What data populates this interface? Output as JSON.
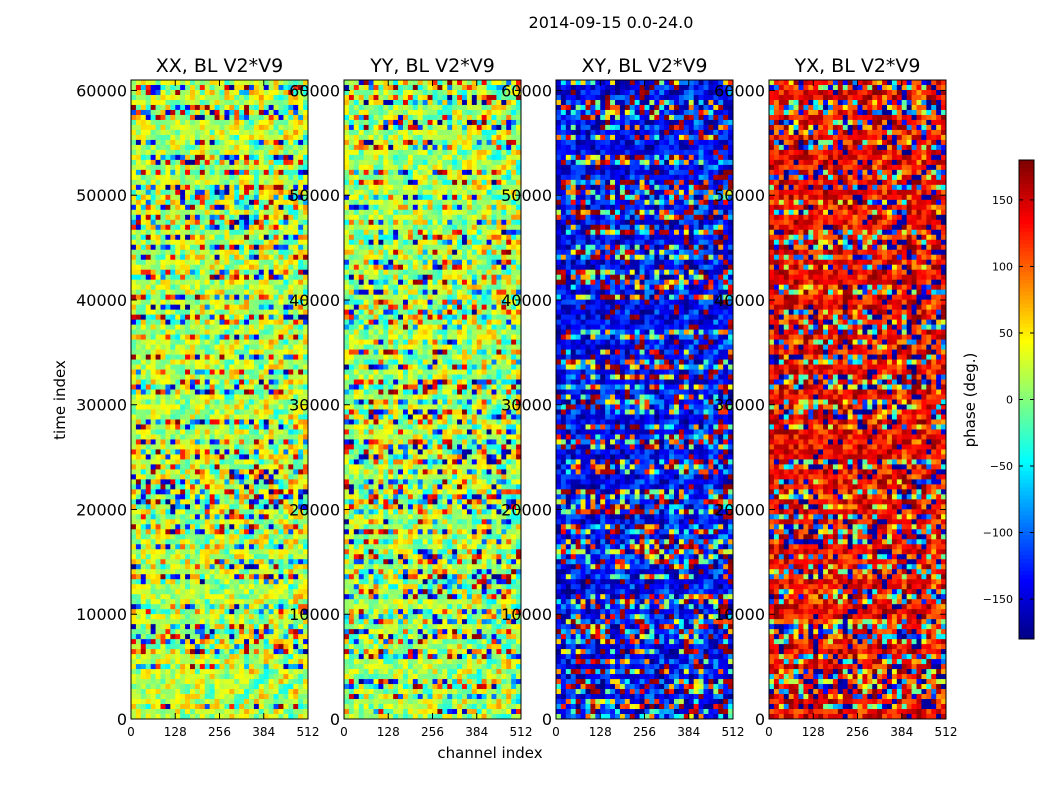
{
  "figure": {
    "title": "2014-09-15 0.0-24.0"
  },
  "chart_data": {
    "type": "heatmap",
    "title": "2014-09-15 0.0-24.0",
    "xlabel": "channel index",
    "ylabel": "time index",
    "xlim": [
      0,
      512
    ],
    "ylim": [
      0,
      61000
    ],
    "x_ticks": [
      0,
      128,
      256,
      384,
      512
    ],
    "x_tick_labels": [
      "0",
      "128",
      "256",
      "384",
      "512"
    ],
    "y_ticks": [
      0,
      10000,
      20000,
      30000,
      40000,
      50000,
      60000
    ],
    "y_tick_labels": [
      "0",
      "10000",
      "20000",
      "30000",
      "40000",
      "50000",
      "60000"
    ],
    "colormap": "jet",
    "colorbar": {
      "label": "phase (deg.)",
      "range": [
        -180,
        180
      ],
      "ticks": [
        -150,
        -100,
        -50,
        0,
        50,
        100,
        150
      ],
      "tick_labels": [
        "−150",
        "−100",
        "−50",
        "0",
        "50",
        "100",
        "150"
      ],
      "placement": "right"
    },
    "panels": [
      {
        "title": "XX, BL V2*V9",
        "dominant_phase": 20
      },
      {
        "title": "YY, BL V2*V9",
        "dominant_phase": 15
      },
      {
        "title": "XY, BL V2*V9",
        "dominant_phase": -140
      },
      {
        "title": "YX, BL V2*V9",
        "dominant_phase": 140
      }
    ]
  }
}
